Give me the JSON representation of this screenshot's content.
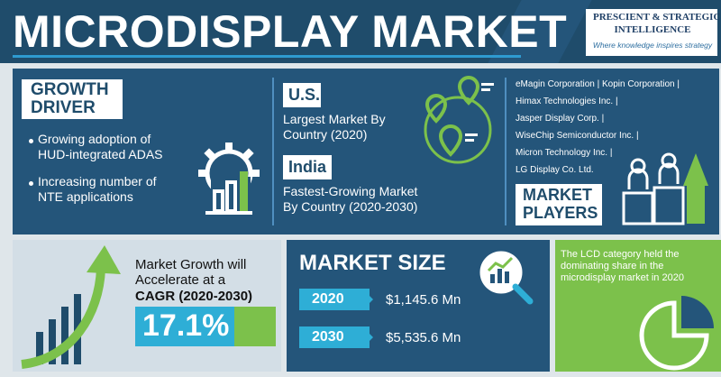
{
  "header": {
    "title": "MICRODISPLAY MARKET",
    "logo_line1": "PRESCIENT & STRATEGIC",
    "logo_line2": "INTELLIGENCE",
    "logo_tagline": "Where knowledge inspires strategy"
  },
  "growth_driver": {
    "title_line1": "GROWTH",
    "title_line2": "DRIVER",
    "bullets": [
      {
        "line1": "Growing adoption of",
        "line2": "HUD-integrated ADAS"
      },
      {
        "line1": "Increasing number of",
        "line2": "NTE applications"
      }
    ]
  },
  "regions": {
    "us": {
      "tag": "U.S.",
      "line1": "Largest Market By",
      "line2": "Country (2020)"
    },
    "india": {
      "tag": "India",
      "line1": "Fastest-Growing Market",
      "line2": "By Country (2020-2030)"
    }
  },
  "players": {
    "rows": [
      "eMagin Corporation | Kopin Corporation |",
      "Himax Technologies Inc. |",
      "Jasper Display Corp. |",
      "WiseChip Semiconductor Inc. |",
      "Micron Technology Inc. |",
      "LG Display Co. Ltd."
    ],
    "title_line1": "MARKET",
    "title_line2": "PLAYERS"
  },
  "growth": {
    "line1": "Market Growth will",
    "line2": "Accelerate at a",
    "cagr_label": "CAGR (2020-2030)",
    "cagr_value": "17.1%"
  },
  "market_size": {
    "title": "MARKET SIZE",
    "rows": [
      {
        "year": "2020",
        "value": "$1,145.6 Mn"
      },
      {
        "year": "2030",
        "value": "$5,535.6 Mn"
      }
    ]
  },
  "lcd": {
    "text": "The LCD category held the dominating share in the microdisplay market in 2020"
  },
  "colors": {
    "navy": "#1f4c6b",
    "panel": "#24557a",
    "cyan": "#2eaed6",
    "green": "#7cc14b"
  }
}
